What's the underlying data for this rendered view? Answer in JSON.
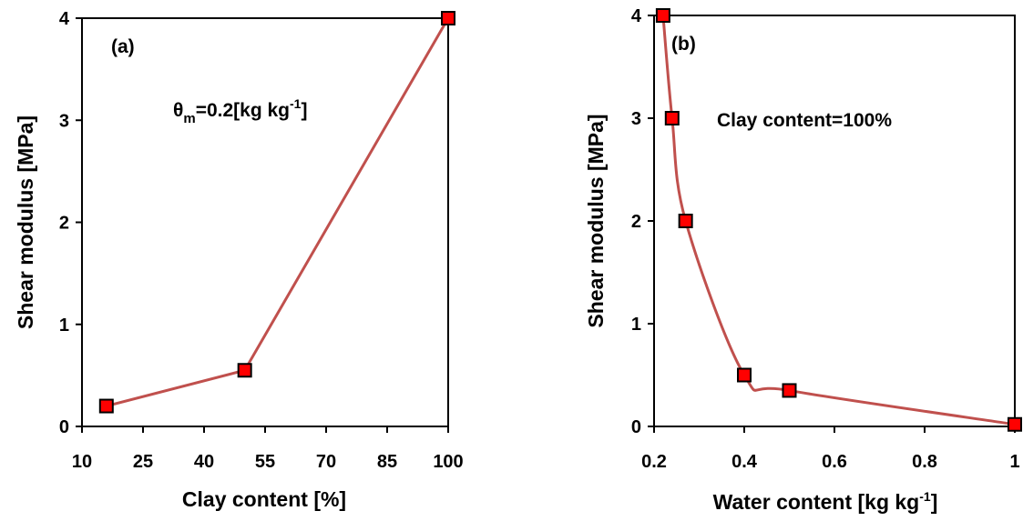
{
  "chart_data": [
    {
      "type": "line",
      "panel_label": "(a)",
      "annotation": {
        "main": "θ",
        "sub": "m",
        "rest": "=0.2[kg kg",
        "sup": "-1",
        "end": "]"
      },
      "xlabel": "Clay content [%]",
      "ylabel": "Shear modulus [MPa]",
      "xlim": [
        10,
        100
      ],
      "ylim": [
        0,
        4
      ],
      "xticks": [
        10,
        25,
        40,
        55,
        70,
        85,
        100
      ],
      "yticks": [
        0,
        1,
        2,
        3,
        4
      ],
      "grid": false,
      "line_color": "#c0504d",
      "marker_color": "#ff0000",
      "smooth": false,
      "series": [
        {
          "x": [
            16,
            50,
            100
          ],
          "y": [
            0.2,
            0.55,
            4.0
          ]
        }
      ]
    },
    {
      "type": "line",
      "panel_label": "(b)",
      "annotation": {
        "main": "Clay content=100%"
      },
      "xlabel": "Water content [kg kg",
      "xlabel_sup": "-1",
      "xlabel_end": "]",
      "ylabel": "Shear modulus [MPa]",
      "xlim": [
        0.2,
        1.0
      ],
      "ylim": [
        0,
        4
      ],
      "xticks": [
        0.2,
        0.4,
        0.6,
        0.8,
        1
      ],
      "yticks": [
        0,
        1,
        2,
        3,
        4
      ],
      "grid": false,
      "line_color": "#c0504d",
      "marker_color": "#ff0000",
      "smooth": true,
      "series": [
        {
          "x": [
            0.22,
            0.24,
            0.27,
            0.4,
            0.5,
            1.0
          ],
          "y": [
            4.0,
            3.0,
            2.0,
            0.5,
            0.35,
            0.02
          ]
        }
      ]
    }
  ]
}
